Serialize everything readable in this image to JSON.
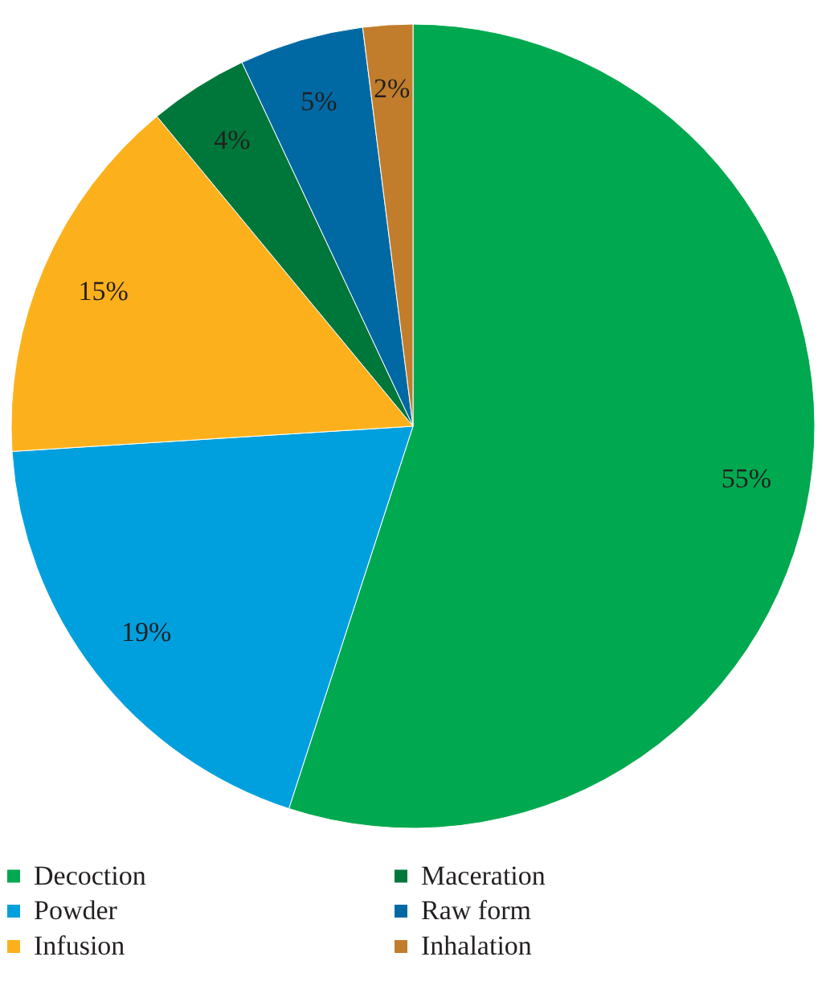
{
  "chart_data": {
    "type": "pie",
    "categories": [
      "Decoction",
      "Powder",
      "Infusion",
      "Maceration",
      "Raw form",
      "Inhalation"
    ],
    "values": [
      55,
      19,
      15,
      4,
      5,
      2
    ],
    "colors": [
      "#00a94f",
      "#00a0df",
      "#fcb11c",
      "#00773a",
      "#0069a4",
      "#c17d2b"
    ],
    "value_labels": [
      "55%",
      "19%",
      "15%",
      "4%",
      "5%",
      "2%"
    ],
    "legend": "bottom"
  }
}
